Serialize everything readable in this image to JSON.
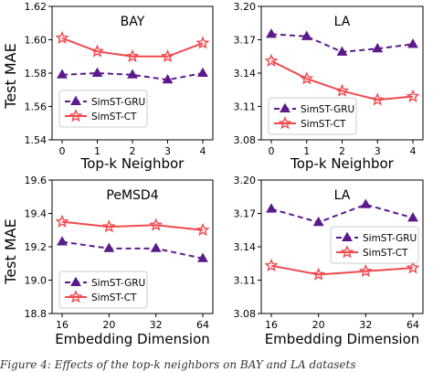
{
  "figure": {
    "y_axis_title": "Test MAE",
    "caption": "Figure 4: Effects of the top-k neighbors on BAY and LA datasets"
  },
  "colors": {
    "gru": "#5b1a8c",
    "ct": "#ef4a4f"
  },
  "chart_data": [
    {
      "type": "line",
      "title": "BAY",
      "xlabel": "Top-k Neighbor",
      "ylabel": "Test MAE",
      "categories": [
        "0",
        "1",
        "2",
        "3",
        "4"
      ],
      "yticks": [
        "1.54",
        "1.56",
        "1.58",
        "1.60",
        "1.62"
      ],
      "ylim": [
        1.54,
        1.62
      ],
      "legend": "center-left",
      "series": [
        {
          "name": "SimST-GRU",
          "values": [
            1.579,
            1.58,
            1.579,
            1.576,
            1.58
          ]
        },
        {
          "name": "SimST-CT",
          "values": [
            1.601,
            1.593,
            1.59,
            1.59,
            1.598
          ]
        }
      ]
    },
    {
      "type": "line",
      "title": "LA",
      "xlabel": "Top-k Neighbor",
      "ylabel": "",
      "categories": [
        "0",
        "1",
        "2",
        "3",
        "4"
      ],
      "yticks": [
        "3.08",
        "3.11",
        "3.14",
        "3.17",
        "3.20"
      ],
      "ylim": [
        3.08,
        3.2
      ],
      "legend": "lower-left",
      "series": [
        {
          "name": "SimST-GRU",
          "values": [
            3.175,
            3.173,
            3.159,
            3.162,
            3.166
          ]
        },
        {
          "name": "SimST-CT",
          "values": [
            3.151,
            3.135,
            3.124,
            3.116,
            3.119
          ]
        }
      ]
    },
    {
      "type": "line",
      "title": "PeMSD4",
      "xlabel": "Embedding Dimension",
      "ylabel": "Test MAE",
      "categories": [
        "16",
        "20",
        "32",
        "64"
      ],
      "yticks": [
        "18.8",
        "19.0",
        "19.2",
        "19.4",
        "19.6"
      ],
      "ylim": [
        18.8,
        19.6
      ],
      "legend": "lower-left",
      "series": [
        {
          "name": "SimST-GRU",
          "values": [
            19.23,
            19.19,
            19.19,
            19.13
          ]
        },
        {
          "name": "SimST-CT",
          "values": [
            19.35,
            19.32,
            19.33,
            19.3
          ]
        }
      ]
    },
    {
      "type": "line",
      "title": "LA",
      "xlabel": "Embedding Dimension",
      "ylabel": "",
      "categories": [
        "16",
        "20",
        "32",
        "64"
      ],
      "yticks": [
        "3.08",
        "3.11",
        "3.14",
        "3.17",
        "3.20"
      ],
      "ylim": [
        3.08,
        3.2
      ],
      "legend": "center-right",
      "series": [
        {
          "name": "SimST-GRU",
          "values": [
            3.174,
            3.162,
            3.178,
            3.166
          ]
        },
        {
          "name": "SimST-CT",
          "values": [
            3.123,
            3.115,
            3.118,
            3.121
          ]
        }
      ]
    }
  ]
}
